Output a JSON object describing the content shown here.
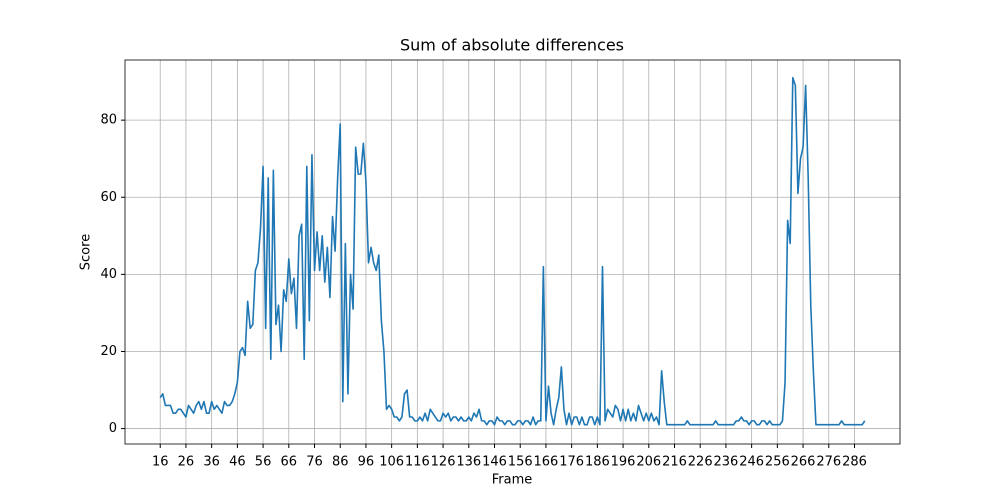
{
  "chart_data": {
    "type": "line",
    "title": "Sum of absolute differences",
    "x_label": "Frame",
    "y_label": "Score",
    "x": [
      16,
      17,
      18,
      19,
      20,
      21,
      22,
      23,
      24,
      25,
      26,
      27,
      28,
      29,
      30,
      31,
      32,
      33,
      34,
      35,
      36,
      37,
      38,
      39,
      40,
      41,
      42,
      43,
      44,
      45,
      46,
      47,
      48,
      49,
      50,
      51,
      52,
      53,
      54,
      55,
      56,
      57,
      58,
      59,
      60,
      61,
      62,
      63,
      64,
      65,
      66,
      67,
      68,
      69,
      70,
      71,
      72,
      73,
      74,
      75,
      76,
      77,
      78,
      79,
      80,
      81,
      82,
      83,
      84,
      85,
      86,
      87,
      88,
      89,
      90,
      91,
      92,
      93,
      94,
      95,
      96,
      97,
      98,
      99,
      100,
      101,
      102,
      103,
      104,
      105,
      106,
      107,
      108,
      109,
      110,
      111,
      112,
      113,
      114,
      115,
      116,
      117,
      118,
      119,
      120,
      121,
      122,
      123,
      124,
      125,
      126,
      127,
      128,
      129,
      130,
      131,
      132,
      133,
      134,
      135,
      136,
      137,
      138,
      139,
      140,
      141,
      142,
      143,
      144,
      145,
      146,
      147,
      148,
      149,
      150,
      151,
      152,
      153,
      154,
      155,
      156,
      157,
      158,
      159,
      160,
      161,
      162,
      163,
      164,
      165,
      166,
      167,
      168,
      169,
      170,
      171,
      172,
      173,
      174,
      175,
      176,
      177,
      178,
      179,
      180,
      181,
      182,
      183,
      184,
      185,
      186,
      187,
      188,
      189,
      190,
      191,
      192,
      193,
      194,
      195,
      196,
      197,
      198,
      199,
      200,
      201,
      202,
      203,
      204,
      205,
      206,
      207,
      208,
      209,
      210,
      211,
      212,
      213,
      214,
      215,
      216,
      217,
      218,
      219,
      220,
      221,
      222,
      223,
      224,
      225,
      226,
      227,
      228,
      229,
      230,
      231,
      232,
      233,
      234,
      235,
      236,
      237,
      238,
      239,
      240,
      241,
      242,
      243,
      244,
      245,
      246,
      247,
      248,
      249,
      250,
      251,
      252,
      253,
      254,
      255,
      256,
      257,
      258,
      259,
      260,
      261,
      262,
      263,
      264,
      265,
      266,
      267,
      268,
      269,
      270,
      271,
      272,
      273,
      274,
      275,
      276,
      277,
      278,
      279,
      280,
      281,
      282,
      283,
      284,
      285,
      286,
      287,
      288,
      289,
      290
    ],
    "series": [
      {
        "color": "#1f77b4",
        "values": [
          8,
          9,
          6,
          6,
          6,
          4,
          4,
          5,
          5,
          4,
          3,
          6,
          5,
          4,
          6,
          7,
          5,
          7,
          4,
          4,
          7,
          5,
          6,
          5,
          4,
          7,
          6,
          6,
          7,
          9,
          12,
          20,
          21,
          19,
          33,
          26,
          27,
          41,
          43,
          52,
          68,
          26,
          65,
          18,
          67,
          27,
          32,
          20,
          36,
          33,
          44,
          35,
          39,
          26,
          50,
          53,
          18,
          68,
          28,
          71,
          41,
          51,
          41,
          50,
          38,
          47,
          34,
          55,
          46,
          65,
          79,
          7,
          48,
          9,
          40,
          31,
          73,
          66,
          66,
          74,
          64,
          43,
          47,
          43,
          41,
          45,
          28,
          20,
          5,
          6,
          5,
          3,
          3,
          2,
          3,
          9,
          10,
          3,
          3,
          2,
          2,
          3,
          2,
          4,
          2,
          5,
          4,
          3,
          2,
          2,
          4,
          3,
          4,
          2,
          3,
          3,
          2,
          3,
          2,
          2,
          3,
          2,
          4,
          3,
          5,
          2,
          2,
          1,
          2,
          2,
          1,
          3,
          2,
          2,
          1,
          2,
          2,
          1,
          1,
          2,
          2,
          1,
          2,
          2,
          1,
          3,
          1,
          2,
          2,
          42,
          2,
          11,
          4,
          1,
          5,
          8,
          16,
          5,
          1,
          4,
          1,
          3,
          3,
          1,
          3,
          1,
          1,
          3,
          3,
          1,
          3,
          1,
          42,
          2,
          5,
          4,
          3,
          6,
          5,
          2,
          5,
          2,
          5,
          2,
          4,
          2,
          6,
          4,
          2,
          4,
          2,
          4,
          2,
          3,
          1,
          15,
          7,
          1,
          1,
          1,
          1,
          1,
          1,
          1,
          1,
          2,
          1,
          1,
          1,
          1,
          1,
          1,
          1,
          1,
          1,
          1,
          2,
          1,
          1,
          1,
          1,
          1,
          1,
          1,
          2,
          2,
          3,
          2,
          2,
          1,
          2,
          2,
          1,
          1,
          2,
          2,
          1,
          2,
          1,
          1,
          1,
          1,
          2,
          12,
          54,
          48,
          91,
          89,
          61,
          70,
          73,
          89,
          65,
          32,
          15,
          1,
          1,
          1,
          1,
          1,
          1,
          1,
          1,
          1,
          1,
          2,
          1,
          1,
          1,
          1,
          1,
          1,
          1,
          1,
          2
        ]
      }
    ],
    "xlim": [
      2.3,
      303.7
    ],
    "xticks": [
      16,
      26,
      36,
      46,
      56,
      66,
      76,
      86,
      96,
      106,
      116,
      126,
      136,
      146,
      156,
      166,
      176,
      186,
      196,
      206,
      216,
      226,
      236,
      246,
      256,
      266,
      276,
      286
    ],
    "ylim": [
      -4,
      95.6
    ],
    "yticks": [
      0,
      20,
      40,
      60,
      80
    ],
    "grid": true
  }
}
